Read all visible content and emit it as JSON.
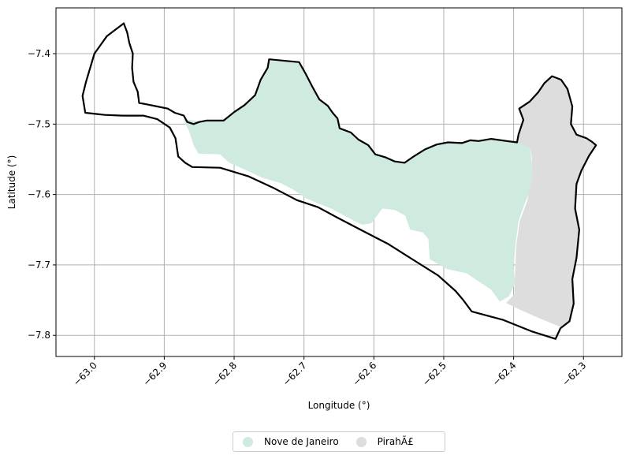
{
  "chart_data": {
    "type": "map",
    "xlabel": "Longitude (°)",
    "ylabel": "Latitude (°)",
    "xlim": [
      -63.055,
      -62.245
    ],
    "ylim": [
      -7.83,
      -7.335
    ],
    "xticks": [
      -63.0,
      -62.9,
      -62.8,
      -62.7,
      -62.6,
      -62.5,
      -62.4,
      -62.3
    ],
    "xtick_labels": [
      "−63.0",
      "−62.9",
      "−62.8",
      "−62.7",
      "−62.6",
      "−62.5",
      "−62.4",
      "−62.3"
    ],
    "yticks": [
      -7.4,
      -7.5,
      -7.6,
      -7.7,
      -7.8
    ],
    "ytick_labels": [
      "−7.4",
      "−7.5",
      "−7.6",
      "−7.7",
      "−7.8"
    ],
    "grid": true,
    "legend_position": "bottom-center",
    "regions": [
      {
        "name": "Nove de Janeiro",
        "color": "#cfeadf",
        "coords": [
          [
            -62.873,
            -7.493
          ],
          [
            -62.857,
            -7.495
          ],
          [
            -62.845,
            -7.497
          ],
          [
            -62.835,
            -7.494
          ],
          [
            -62.815,
            -7.494
          ],
          [
            -62.8,
            -7.483
          ],
          [
            -62.785,
            -7.473
          ],
          [
            -62.771,
            -7.459
          ],
          [
            -62.763,
            -7.437
          ],
          [
            -62.753,
            -7.42
          ],
          [
            -62.75,
            -7.41
          ],
          [
            -62.717,
            -7.412
          ],
          [
            -62.707,
            -7.414
          ],
          [
            -62.698,
            -7.428
          ],
          [
            -62.688,
            -7.447
          ],
          [
            -62.676,
            -7.465
          ],
          [
            -62.666,
            -7.474
          ],
          [
            -62.66,
            -7.484
          ],
          [
            -62.652,
            -7.492
          ],
          [
            -62.648,
            -7.506
          ],
          [
            -62.632,
            -7.511
          ],
          [
            -62.622,
            -7.522
          ],
          [
            -62.608,
            -7.53
          ],
          [
            -62.598,
            -7.543
          ],
          [
            -62.585,
            -7.547
          ],
          [
            -62.57,
            -7.553
          ],
          [
            -62.556,
            -7.554
          ],
          [
            -62.543,
            -7.545
          ],
          [
            -62.527,
            -7.535
          ],
          [
            -62.51,
            -7.528
          ],
          [
            -62.494,
            -7.525
          ],
          [
            -62.474,
            -7.526
          ],
          [
            -62.462,
            -7.523
          ],
          [
            -62.45,
            -7.524
          ],
          [
            -62.43,
            -7.521
          ],
          [
            -62.41,
            -7.524
          ],
          [
            -62.395,
            -7.525
          ],
          [
            -62.382,
            -7.525
          ],
          [
            -62.376,
            -7.533
          ],
          [
            -62.374,
            -7.56
          ],
          [
            -62.374,
            -7.59
          ],
          [
            -62.385,
            -7.615
          ],
          [
            -62.393,
            -7.638
          ],
          [
            -62.397,
            -7.668
          ],
          [
            -62.4,
            -7.7
          ],
          [
            -62.398,
            -7.727
          ],
          [
            -62.407,
            -7.745
          ],
          [
            -62.42,
            -7.752
          ],
          [
            -62.432,
            -7.735
          ],
          [
            -62.452,
            -7.722
          ],
          [
            -62.467,
            -7.712
          ],
          [
            -62.495,
            -7.706
          ],
          [
            -62.52,
            -7.692
          ],
          [
            -62.522,
            -7.663
          ],
          [
            -62.53,
            -7.654
          ],
          [
            -62.548,
            -7.65
          ],
          [
            -62.555,
            -7.63
          ],
          [
            -62.57,
            -7.622
          ],
          [
            -62.588,
            -7.62
          ],
          [
            -62.604,
            -7.641
          ],
          [
            -62.617,
            -7.643
          ],
          [
            -62.633,
            -7.635
          ],
          [
            -62.661,
            -7.62
          ],
          [
            -62.696,
            -7.606
          ],
          [
            -62.714,
            -7.594
          ],
          [
            -62.733,
            -7.584
          ],
          [
            -62.76,
            -7.576
          ],
          [
            -62.786,
            -7.564
          ],
          [
            -62.807,
            -7.555
          ],
          [
            -62.82,
            -7.543
          ],
          [
            -62.851,
            -7.542
          ],
          [
            -62.858,
            -7.53
          ],
          [
            -62.864,
            -7.511
          ]
        ]
      },
      {
        "name": "PirahÃ£",
        "color": "#dddddd",
        "coords": [
          [
            -62.393,
            -7.527
          ],
          [
            -62.392,
            -7.514
          ],
          [
            -62.387,
            -7.493
          ],
          [
            -62.392,
            -7.478
          ],
          [
            -62.376,
            -7.468
          ],
          [
            -62.365,
            -7.455
          ],
          [
            -62.356,
            -7.442
          ],
          [
            -62.345,
            -7.432
          ],
          [
            -62.332,
            -7.438
          ],
          [
            -62.323,
            -7.45
          ],
          [
            -62.315,
            -7.475
          ],
          [
            -62.318,
            -7.5
          ],
          [
            -62.31,
            -7.515
          ],
          [
            -62.297,
            -7.522
          ],
          [
            -62.29,
            -7.525
          ],
          [
            -62.282,
            -7.53
          ],
          [
            -62.293,
            -7.545
          ],
          [
            -62.303,
            -7.567
          ],
          [
            -62.31,
            -7.585
          ],
          [
            -62.312,
            -7.62
          ],
          [
            -62.307,
            -7.65
          ],
          [
            -62.31,
            -7.69
          ],
          [
            -62.316,
            -7.72
          ],
          [
            -62.314,
            -7.755
          ],
          [
            -62.32,
            -7.78
          ],
          [
            -62.333,
            -7.788
          ],
          [
            -62.36,
            -7.777
          ],
          [
            -62.39,
            -7.764
          ],
          [
            -62.411,
            -7.754
          ],
          [
            -62.399,
            -7.742
          ],
          [
            -62.398,
            -7.712
          ],
          [
            -62.396,
            -7.67
          ],
          [
            -62.391,
            -7.637
          ],
          [
            -62.38,
            -7.608
          ],
          [
            -62.374,
            -7.578
          ],
          [
            -62.374,
            -7.548
          ],
          [
            -62.376,
            -7.533
          ]
        ]
      }
    ],
    "outline": [
      [
        -62.958,
        -7.357
      ],
      [
        -62.953,
        -7.37
      ],
      [
        -62.95,
        -7.385
      ],
      [
        -62.945,
        -7.4
      ],
      [
        -62.946,
        -7.42
      ],
      [
        -62.944,
        -7.44
      ],
      [
        -62.938,
        -7.454
      ],
      [
        -62.936,
        -7.47
      ],
      [
        -62.925,
        -7.472
      ],
      [
        -62.91,
        -7.475
      ],
      [
        -62.895,
        -7.478
      ],
      [
        -62.885,
        -7.484
      ],
      [
        -62.872,
        -7.488
      ],
      [
        -62.867,
        -7.497
      ],
      [
        -62.858,
        -7.5
      ],
      [
        -62.85,
        -7.497
      ],
      [
        -62.84,
        -7.495
      ],
      [
        -62.815,
        -7.495
      ],
      [
        -62.8,
        -7.483
      ],
      [
        -62.785,
        -7.473
      ],
      [
        -62.77,
        -7.459
      ],
      [
        -62.762,
        -7.437
      ],
      [
        -62.752,
        -7.42
      ],
      [
        -62.75,
        -7.408
      ],
      [
        -62.707,
        -7.412
      ],
      [
        -62.698,
        -7.428
      ],
      [
        -62.688,
        -7.447
      ],
      [
        -62.678,
        -7.465
      ],
      [
        -62.666,
        -7.474
      ],
      [
        -62.659,
        -7.484
      ],
      [
        -62.652,
        -7.492
      ],
      [
        -62.649,
        -7.506
      ],
      [
        -62.633,
        -7.512
      ],
      [
        -62.622,
        -7.522
      ],
      [
        -62.608,
        -7.53
      ],
      [
        -62.598,
        -7.543
      ],
      [
        -62.584,
        -7.547
      ],
      [
        -62.57,
        -7.553
      ],
      [
        -62.556,
        -7.555
      ],
      [
        -62.543,
        -7.546
      ],
      [
        -62.527,
        -7.536
      ],
      [
        -62.51,
        -7.529
      ],
      [
        -62.494,
        -7.526
      ],
      [
        -62.474,
        -7.527
      ],
      [
        -62.462,
        -7.523
      ],
      [
        -62.45,
        -7.524
      ],
      [
        -62.432,
        -7.521
      ],
      [
        -62.41,
        -7.524
      ],
      [
        -62.395,
        -7.526
      ],
      [
        -62.393,
        -7.515
      ],
      [
        -62.386,
        -7.494
      ],
      [
        -62.392,
        -7.478
      ],
      [
        -62.377,
        -7.468
      ],
      [
        -62.365,
        -7.455
      ],
      [
        -62.356,
        -7.442
      ],
      [
        -62.345,
        -7.432
      ],
      [
        -62.332,
        -7.437
      ],
      [
        -62.323,
        -7.45
      ],
      [
        -62.316,
        -7.475
      ],
      [
        -62.318,
        -7.5
      ],
      [
        -62.31,
        -7.515
      ],
      [
        -62.296,
        -7.52
      ],
      [
        -62.288,
        -7.525
      ],
      [
        -62.282,
        -7.53
      ],
      [
        -62.292,
        -7.545
      ],
      [
        -62.303,
        -7.566
      ],
      [
        -62.31,
        -7.585
      ],
      [
        -62.312,
        -7.62
      ],
      [
        -62.306,
        -7.65
      ],
      [
        -62.31,
        -7.69
      ],
      [
        -62.316,
        -7.72
      ],
      [
        -62.314,
        -7.755
      ],
      [
        -62.32,
        -7.78
      ],
      [
        -62.333,
        -7.79
      ],
      [
        -62.34,
        -7.805
      ],
      [
        -62.375,
        -7.794
      ],
      [
        -62.415,
        -7.778
      ],
      [
        -62.46,
        -7.766
      ],
      [
        -62.472,
        -7.75
      ],
      [
        -62.483,
        -7.737
      ],
      [
        -62.508,
        -7.715
      ],
      [
        -62.54,
        -7.695
      ],
      [
        -62.58,
        -7.67
      ],
      [
        -62.615,
        -7.652
      ],
      [
        -62.65,
        -7.634
      ],
      [
        -62.68,
        -7.618
      ],
      [
        -62.71,
        -7.608
      ],
      [
        -62.745,
        -7.59
      ],
      [
        -62.78,
        -7.574
      ],
      [
        -62.82,
        -7.562
      ],
      [
        -62.86,
        -7.561
      ],
      [
        -62.87,
        -7.555
      ],
      [
        -62.88,
        -7.546
      ],
      [
        -62.884,
        -7.52
      ],
      [
        -62.892,
        -7.505
      ],
      [
        -62.91,
        -7.493
      ],
      [
        -62.93,
        -7.488
      ],
      [
        -62.96,
        -7.488
      ],
      [
        -62.985,
        -7.487
      ],
      [
        -63.013,
        -7.484
      ],
      [
        -63.017,
        -7.46
      ],
      [
        -63.012,
        -7.44
      ],
      [
        -63.0,
        -7.4
      ],
      [
        -62.982,
        -7.375
      ]
    ]
  },
  "legend": {
    "items": [
      {
        "label": "Nove de Janeiro",
        "color": "#cfeadf"
      },
      {
        "label": "PirahÃ£",
        "color": "#dddddd"
      }
    ]
  }
}
